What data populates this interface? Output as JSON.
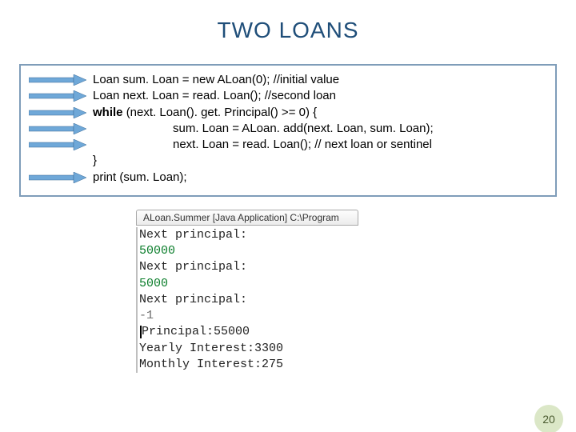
{
  "title": "TWO LOANS",
  "code": {
    "arrow_color": "#6fa8d8",
    "lines": [
      {
        "arrow": true,
        "indent": 0,
        "parts": [
          {
            "t": "Loan sum. Loan = new ALoan(0); //initial value"
          }
        ]
      },
      {
        "arrow": true,
        "indent": 0,
        "parts": [
          {
            "t": "Loan next. Loan = read. Loan(); //second loan"
          }
        ]
      },
      {
        "arrow": true,
        "indent": 0,
        "parts": [
          {
            "t": "while ",
            "bold": true
          },
          {
            "t": "(next. Loan(). get. Principal() >= 0) {"
          }
        ]
      },
      {
        "arrow": true,
        "indent": 1,
        "parts": [
          {
            "t": "sum. Loan = ALoan. add(next. Loan, sum. Loan);"
          }
        ]
      },
      {
        "arrow": true,
        "indent": 1,
        "parts": [
          {
            "t": "next. Loan = read. Loan(); // next loan or sentinel"
          }
        ]
      },
      {
        "arrow": false,
        "indent": 0,
        "parts": [
          {
            "t": "}"
          }
        ]
      },
      {
        "arrow": true,
        "indent": 0,
        "parts": [
          {
            "t": "print (sum. Loan);"
          }
        ]
      }
    ]
  },
  "console": {
    "tab": "ALoan.Summer [Java Application]  C:\\Program",
    "lines": [
      {
        "text": "Next principal:",
        "class": "c-black"
      },
      {
        "text": "50000",
        "class": "c-green"
      },
      {
        "text": "Next principal:",
        "class": "c-black"
      },
      {
        "text": "5000",
        "class": "c-green"
      },
      {
        "text": "Next principal:",
        "class": "c-black"
      },
      {
        "text": "-1",
        "class": "c-faded"
      },
      {
        "text": "Principal:55000",
        "class": "c-black",
        "cursor": true
      },
      {
        "text": "Yearly Interest:3300",
        "class": "c-black"
      },
      {
        "text": "Monthly Interest:275",
        "class": "c-black"
      }
    ]
  },
  "page_number": "20"
}
